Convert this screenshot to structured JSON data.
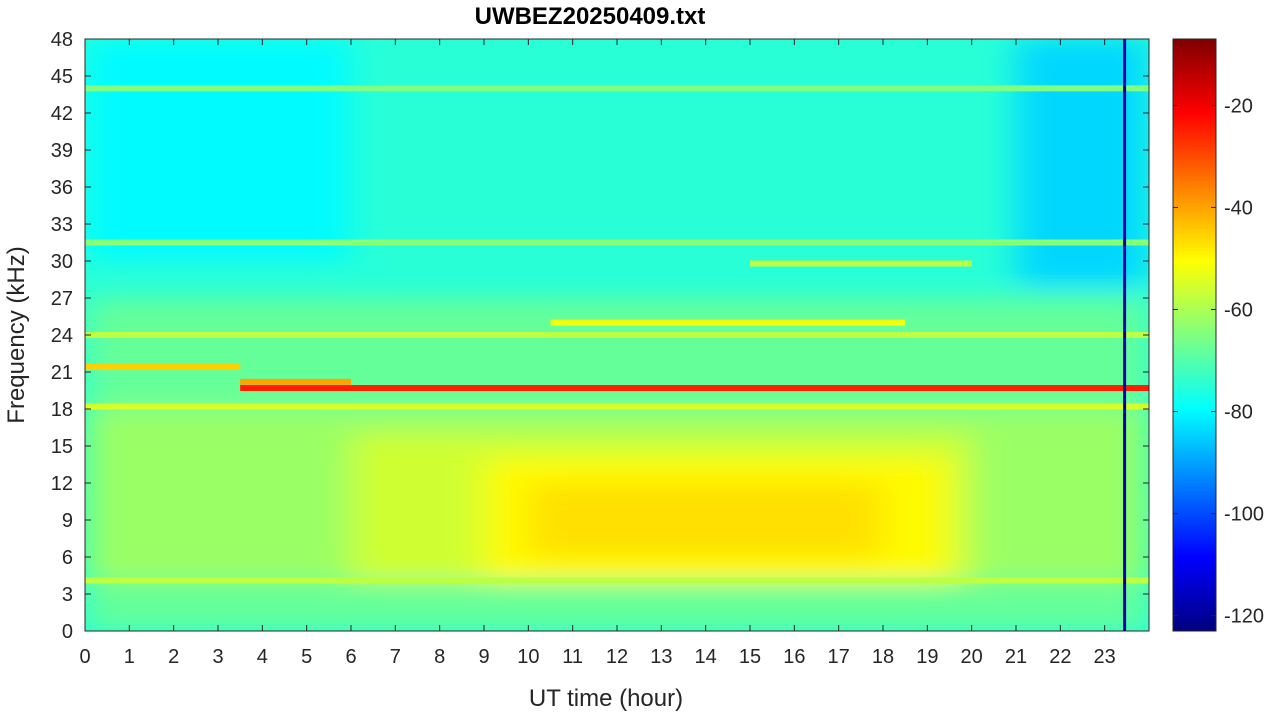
{
  "chart_data": {
    "type": "heatmap",
    "title": "UWBEZ20250409.txt",
    "xlabel": "UT time (hour)",
    "ylabel": "Frequency (kHz)",
    "xlim": [
      0,
      24
    ],
    "ylim": [
      0,
      48
    ],
    "x_ticks": [
      0,
      1,
      2,
      3,
      4,
      5,
      6,
      7,
      8,
      9,
      10,
      11,
      12,
      13,
      14,
      15,
      16,
      17,
      18,
      19,
      20,
      21,
      22,
      23
    ],
    "y_ticks": [
      0,
      3,
      6,
      9,
      12,
      15,
      18,
      21,
      24,
      27,
      30,
      33,
      36,
      39,
      42,
      45,
      48
    ],
    "colorbar": {
      "colormap": "jet",
      "clim": [
        -123,
        -7
      ],
      "ticks": [
        -120,
        -100,
        -80,
        -60,
        -40,
        -20
      ]
    },
    "regions": [
      {
        "x": [
          0,
          24
        ],
        "y": [
          0,
          48
        ],
        "value": -75
      },
      {
        "x": [
          0,
          24
        ],
        "y": [
          0,
          4
        ],
        "value": -68
      },
      {
        "x": [
          0,
          24
        ],
        "y": [
          4,
          18
        ],
        "value": -62
      },
      {
        "x": [
          0,
          24
        ],
        "y": [
          18,
          27
        ],
        "value": -68
      },
      {
        "x": [
          6,
          20
        ],
        "y": [
          4,
          16
        ],
        "value": -56
      },
      {
        "x": [
          9,
          19.5
        ],
        "y": [
          4,
          14
        ],
        "value": -50
      },
      {
        "x": [
          10,
          18
        ],
        "y": [
          6,
          12
        ],
        "value": -47
      },
      {
        "x": [
          0,
          6
        ],
        "y": [
          30,
          48
        ],
        "value": -80
      },
      {
        "x": [
          21,
          24
        ],
        "y": [
          28,
          48
        ],
        "value": -84
      }
    ],
    "lines": [
      {
        "x": [
          3.5,
          24
        ],
        "y": 19.7,
        "value": -25
      },
      {
        "x": [
          0,
          3.5
        ],
        "y": 21.4,
        "value": -45
      },
      {
        "x": [
          3.5,
          6
        ],
        "y": 20.2,
        "value": -40
      },
      {
        "x": [
          0,
          24
        ],
        "y": 18.2,
        "value": -55
      },
      {
        "x": [
          10.5,
          18.5
        ],
        "y": 25,
        "value": -52
      },
      {
        "x": [
          0,
          24
        ],
        "y": 24,
        "value": -58
      },
      {
        "x": [
          15,
          20
        ],
        "y": 29.8,
        "value": -58
      },
      {
        "x": [
          0,
          24
        ],
        "y": 4.1,
        "value": -58
      },
      {
        "x": [
          0,
          24
        ],
        "y": 31.5,
        "value": -64
      },
      {
        "x": [
          0,
          24
        ],
        "y": 44,
        "value": -65
      }
    ],
    "vlines": [
      {
        "x": 23.45,
        "y": [
          0,
          48
        ],
        "value": -118
      }
    ]
  }
}
